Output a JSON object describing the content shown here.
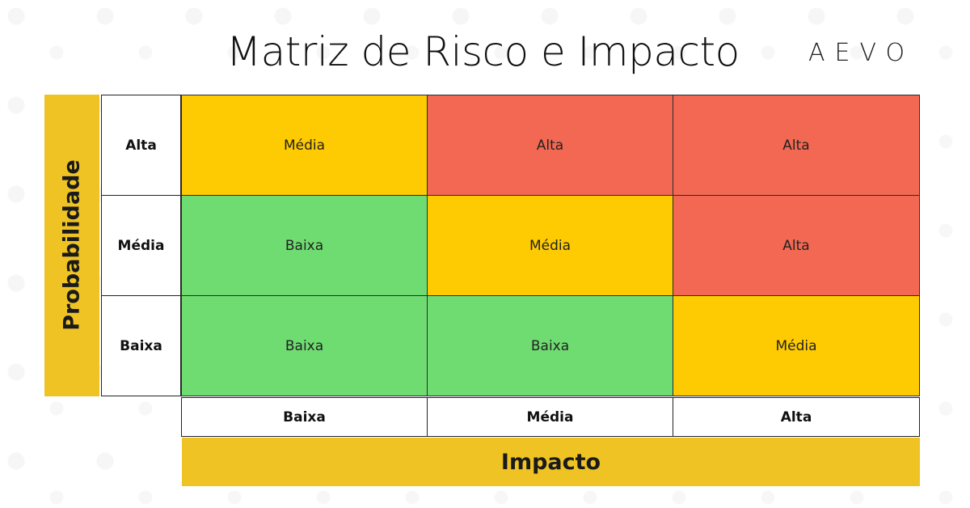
{
  "title": "Matriz de Risco e Impacto",
  "logo": "AEVO",
  "y_axis_label": "Probabilidade",
  "x_axis_label": "Impacto",
  "row_headers": [
    "Alta",
    "Média",
    "Baixa"
  ],
  "col_headers": [
    "Baixa",
    "Média",
    "Alta"
  ],
  "cells": [
    [
      "Média",
      "Alta",
      "Alta"
    ],
    [
      "Baixa",
      "Média",
      "Alta"
    ],
    [
      "Baixa",
      "Baixa",
      "Média"
    ]
  ],
  "colors": {
    "media": "#fecb02",
    "alta": "#f26852",
    "baixa": "#6fdc71",
    "axis_bar": "#eec323"
  }
}
